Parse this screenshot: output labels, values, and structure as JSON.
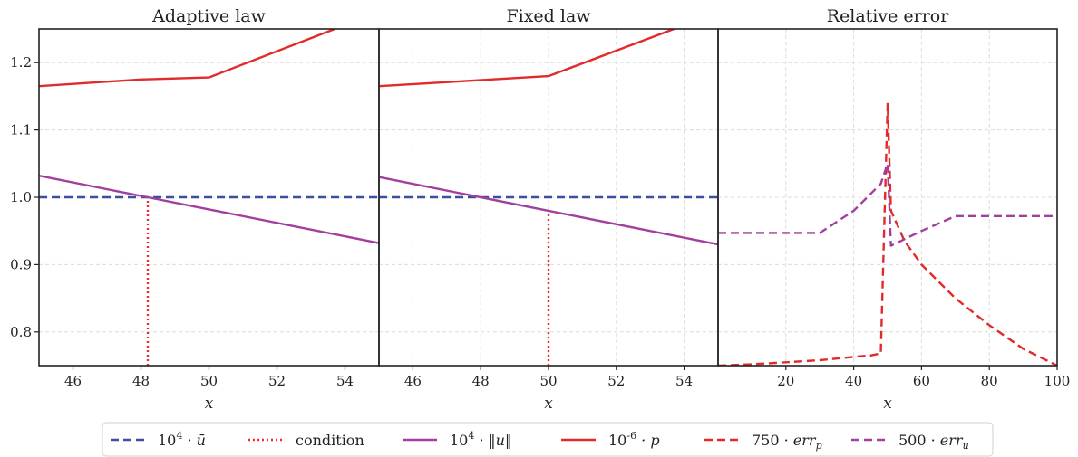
{
  "chart_data": [
    {
      "type": "line",
      "title": "Adaptive law",
      "xlabel": "x",
      "ylabel": "",
      "xlim": [
        45,
        55
      ],
      "ylim": [
        0.75,
        1.25
      ],
      "xticks": [
        "46",
        "48",
        "50",
        "52",
        "54"
      ],
      "yticks": [
        "0.8",
        "0.9",
        "1.0",
        "1.1",
        "1.2"
      ],
      "grid": true,
      "series": [
        {
          "name": "10^4 · ū",
          "key": "ubar",
          "color": "#3a4fa0",
          "dash": "dashed",
          "x": [
            45,
            55
          ],
          "y": [
            1.0,
            1.0
          ]
        },
        {
          "name": "condition",
          "key": "cond",
          "color": "#ee2a2a",
          "dash": "dotted",
          "x": [
            48.2,
            48.2
          ],
          "y": [
            0.75,
            1.0
          ]
        },
        {
          "name": "10^4 · ‖u‖",
          "key": "unorm",
          "color": "#a23f9e",
          "dash": "solid",
          "x": [
            45,
            48.2,
            50,
            55
          ],
          "y": [
            1.032,
            1.0,
            0.982,
            0.932
          ]
        },
        {
          "name": "10^-6 · p",
          "key": "p",
          "color": "#e22a2a",
          "dash": "solid",
          "x": [
            45,
            48,
            50,
            53.7
          ],
          "y": [
            1.165,
            1.175,
            1.178,
            1.25
          ]
        }
      ]
    },
    {
      "type": "line",
      "title": "Fixed law",
      "xlabel": "x",
      "ylabel": "",
      "xlim": [
        45,
        55
      ],
      "ylim": [
        0.75,
        1.25
      ],
      "xticks": [
        "46",
        "48",
        "50",
        "52",
        "54"
      ],
      "yticks": [],
      "grid": true,
      "series": [
        {
          "name": "10^4 · ū",
          "key": "ubar",
          "color": "#3a4fa0",
          "dash": "dashed",
          "x": [
            45,
            55
          ],
          "y": [
            1.0,
            1.0
          ]
        },
        {
          "name": "condition",
          "key": "cond",
          "color": "#ee2a2a",
          "dash": "dotted",
          "x": [
            50,
            50
          ],
          "y": [
            0.75,
            0.98
          ]
        },
        {
          "name": "10^4 · ‖u‖",
          "key": "unorm",
          "color": "#a23f9e",
          "dash": "solid",
          "x": [
            45,
            50,
            55
          ],
          "y": [
            1.03,
            0.98,
            0.93
          ]
        },
        {
          "name": "10^-6 · p",
          "key": "p",
          "color": "#e22a2a",
          "dash": "solid",
          "x": [
            45,
            50,
            53.7
          ],
          "y": [
            1.165,
            1.18,
            1.25
          ]
        }
      ]
    },
    {
      "type": "line",
      "title": "Relative error",
      "xlabel": "x",
      "ylabel": "",
      "xlim": [
        0,
        100
      ],
      "ylim": [
        0.75,
        1.25
      ],
      "xticks": [
        "20",
        "40",
        "60",
        "80",
        "100"
      ],
      "yticks": [],
      "grid": true,
      "series": [
        {
          "name": "750 · err_p",
          "key": "errp",
          "color": "#e22a2a",
          "dash": "dashed",
          "x": [
            0,
            10,
            20,
            30,
            40,
            45,
            48,
            50,
            51,
            55,
            60,
            70,
            80,
            90,
            100
          ],
          "y": [
            0.75,
            0.752,
            0.755,
            0.758,
            0.763,
            0.765,
            0.768,
            1.14,
            0.98,
            0.935,
            0.9,
            0.85,
            0.81,
            0.775,
            0.75
          ]
        },
        {
          "name": "500 · err_u",
          "key": "erru",
          "color": "#a23f9e",
          "dash": "dashed",
          "x": [
            0,
            30,
            40,
            48,
            50,
            51,
            60,
            70,
            100
          ],
          "y": [
            0.947,
            0.947,
            0.98,
            1.02,
            1.05,
            0.928,
            0.95,
            0.972,
            0.972
          ]
        }
      ]
    }
  ],
  "legend": {
    "placement": "bottom-center",
    "items": [
      {
        "key": "ubar",
        "label": "10^4 · ū",
        "color": "#3a4fa0",
        "dash": "dashed"
      },
      {
        "key": "cond",
        "label": "condition",
        "color": "#ee2a2a",
        "dash": "dotted"
      },
      {
        "key": "unorm",
        "label": "10^4 · ‖u‖",
        "color": "#a23f9e",
        "dash": "solid"
      },
      {
        "key": "p",
        "label": "10^-6 · p",
        "color": "#e22a2a",
        "dash": "solid"
      },
      {
        "key": "errp",
        "label": "750 · err_p",
        "color": "#e22a2a",
        "dash": "dashed"
      },
      {
        "key": "erru",
        "label": "500 · err_u",
        "color": "#a23f9e",
        "dash": "dashed"
      }
    ]
  }
}
